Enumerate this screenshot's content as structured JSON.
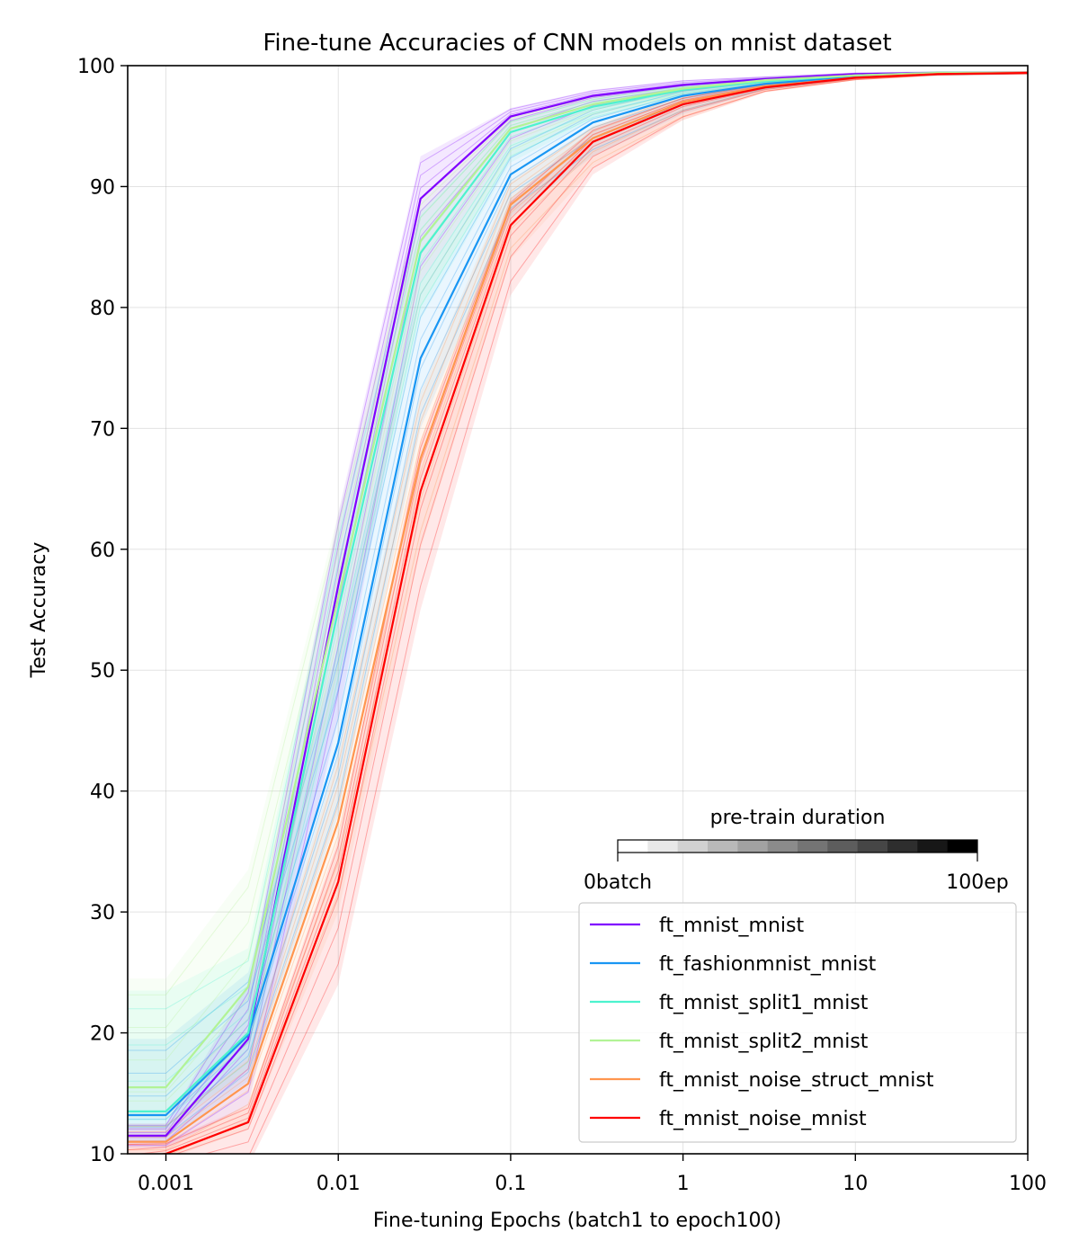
{
  "chart_data": {
    "type": "line",
    "title": "Fine-tune Accuracies of CNN models on mnist dataset",
    "xlabel": "Fine-tuning Epochs (batch1 to epoch100)",
    "ylabel": "Test Accuracy",
    "x_scale": "log",
    "xlim": [
      0.0006,
      100
    ],
    "ylim": [
      10,
      100
    ],
    "x_ticks": [
      0.001,
      0.01,
      0.1,
      1,
      10,
      100
    ],
    "x_tick_labels": [
      "0.001",
      "0.01",
      "0.1",
      "1",
      "10",
      "100"
    ],
    "y_ticks": [
      10,
      20,
      30,
      40,
      50,
      60,
      70,
      80,
      90,
      100
    ],
    "y_tick_labels": [
      "10",
      "20",
      "30",
      "40",
      "50",
      "60",
      "70",
      "80",
      "90",
      "100"
    ],
    "grid": true,
    "legend_position": "bottom-right",
    "x": [
      0.0006,
      0.001,
      0.003,
      0.01,
      0.03,
      0.1,
      0.3,
      1,
      3,
      10,
      30,
      100
    ],
    "series": [
      {
        "name": "ft_mnist_mnist",
        "color": "#8000ff",
        "values": [
          11.5,
          11.5,
          19.5,
          57.0,
          89.0,
          95.8,
          97.5,
          98.4,
          98.9,
          99.3,
          99.4,
          99.4
        ],
        "band_low": [
          10.5,
          10.5,
          14.0,
          46.0,
          82.0,
          93.5,
          96.5,
          97.8,
          98.6,
          99.2,
          99.3,
          99.4
        ],
        "band_high": [
          12.5,
          12.5,
          24.0,
          63.0,
          92.5,
          96.5,
          98.0,
          98.8,
          99.1,
          99.4,
          99.5,
          99.5
        ]
      },
      {
        "name": "ft_fashionmnist_mnist",
        "color": "#1996f3",
        "values": [
          13.2,
          13.2,
          19.8,
          44.0,
          75.8,
          91.0,
          95.3,
          97.5,
          98.5,
          99.1,
          99.3,
          99.4
        ],
        "band_low": [
          11.0,
          11.0,
          16.0,
          38.0,
          70.0,
          87.5,
          92.5,
          96.0,
          98.0,
          98.9,
          99.2,
          99.3
        ],
        "band_high": [
          19.5,
          19.5,
          25.0,
          52.0,
          82.0,
          93.5,
          96.5,
          98.2,
          98.8,
          99.3,
          99.4,
          99.5
        ]
      },
      {
        "name": "ft_mnist_split1_mnist",
        "color": "#4df3ce",
        "values": [
          13.5,
          13.5,
          20.0,
          55.0,
          84.5,
          94.5,
          96.6,
          98.0,
          98.7,
          99.2,
          99.4,
          99.4
        ],
        "band_low": [
          12.0,
          12.0,
          17.0,
          48.0,
          79.0,
          92.0,
          95.5,
          97.5,
          98.4,
          99.0,
          99.3,
          99.4
        ],
        "band_high": [
          23.5,
          23.5,
          27.0,
          62.0,
          88.0,
          95.5,
          97.3,
          98.4,
          98.9,
          99.3,
          99.5,
          99.5
        ]
      },
      {
        "name": "ft_mnist_split2_mnist",
        "color": "#b2f396",
        "values": [
          15.5,
          15.5,
          23.8,
          56.0,
          85.5,
          94.8,
          96.8,
          98.1,
          98.8,
          99.2,
          99.4,
          99.4
        ],
        "band_low": [
          13.0,
          13.0,
          18.0,
          49.0,
          80.0,
          92.5,
          95.8,
          97.6,
          98.5,
          99.1,
          99.3,
          99.4
        ],
        "band_high": [
          24.5,
          24.5,
          33.5,
          63.0,
          89.0,
          95.8,
          97.5,
          98.5,
          99.0,
          99.3,
          99.5,
          99.5
        ]
      },
      {
        "name": "ft_mnist_noise_struct_mnist",
        "color": "#ff964f",
        "values": [
          11.0,
          11.0,
          15.8,
          37.5,
          67.5,
          88.5,
          94.0,
          97.0,
          98.3,
          99.0,
          99.3,
          99.4
        ],
        "band_low": [
          9.5,
          9.5,
          12.0,
          30.0,
          60.0,
          84.0,
          91.5,
          95.5,
          97.8,
          98.8,
          99.2,
          99.3
        ],
        "band_high": [
          12.5,
          12.5,
          18.0,
          43.0,
          73.0,
          90.5,
          95.0,
          97.6,
          98.6,
          99.1,
          99.4,
          99.5
        ]
      },
      {
        "name": "ft_mnist_noise_mnist",
        "color": "#ff0000",
        "values": [
          9.5,
          10.0,
          12.6,
          32.5,
          64.8,
          86.8,
          93.7,
          96.8,
          98.2,
          99.0,
          99.3,
          99.4
        ],
        "band_low": [
          8.0,
          8.0,
          9.0,
          24.0,
          55.0,
          81.0,
          91.0,
          95.5,
          97.8,
          98.8,
          99.2,
          99.3
        ],
        "band_high": [
          11.0,
          11.0,
          14.0,
          36.0,
          69.0,
          89.0,
          94.8,
          97.4,
          98.5,
          99.1,
          99.4,
          99.5
        ]
      }
    ],
    "colorbar": {
      "title": "pre-train duration",
      "min_label": "0batch",
      "max_label": "100ep",
      "colormap": "greys"
    }
  }
}
